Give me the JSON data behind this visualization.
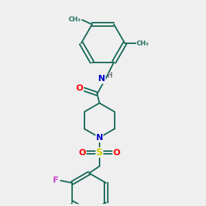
{
  "bg_color": "#efefef",
  "bond_color": "#1a6b5a",
  "bond_width": 1.5,
  "atom_colors": {
    "O": "#ff0000",
    "N": "#0000cc",
    "S": "#cccc00",
    "F": "#cc44cc",
    "H": "#777777",
    "C": "#1a6b5a"
  },
  "font_size_atom": 9,
  "font_size_small": 7
}
